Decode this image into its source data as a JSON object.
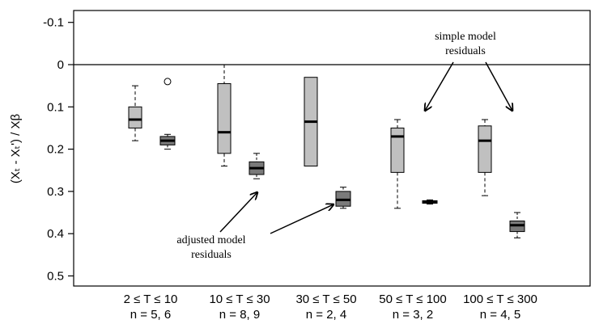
{
  "chart_data": {
    "type": "boxplot",
    "ylabel": "(Xₜ - Xₜ') / Xβ",
    "ylim": [
      -0.15,
      0.53
    ],
    "y_inverted": true,
    "yticks": [
      "-0.1",
      "0",
      "0.1",
      "0.2",
      "0.3",
      "0.4",
      "0.5"
    ],
    "ytick_values": [
      -0.1,
      0,
      0.1,
      0.2,
      0.3,
      0.4,
      0.5
    ],
    "reference_line": 0,
    "grid": false,
    "groups": [
      {
        "label": "2 ≤ T ≤ 10",
        "n_label": "n = 5, 6"
      },
      {
        "label": "10 ≤ T ≤ 30",
        "n_label": "n = 8, 9"
      },
      {
        "label": "30 ≤ T ≤ 50",
        "n_label": "n = 2, 4"
      },
      {
        "label": "50 ≤ T ≤ 100",
        "n_label": "n = 3, 2"
      },
      {
        "label": "100 ≤ T ≤ 300",
        "n_label": "n = 4, 5"
      }
    ],
    "boxes": [
      {
        "group": 0,
        "kind": "simple",
        "whisker_low": 0.05,
        "q1": 0.1,
        "median": 0.13,
        "q3": 0.15,
        "whisker_high": 0.18,
        "outliers": []
      },
      {
        "group": 0,
        "kind": "adjusted",
        "whisker_low": 0.165,
        "q1": 0.17,
        "median": 0.18,
        "q3": 0.19,
        "whisker_high": 0.2,
        "outliers": [
          0.04
        ]
      },
      {
        "group": 1,
        "kind": "simple",
        "whisker_low": 0.0,
        "q1": 0.045,
        "median": 0.16,
        "q3": 0.21,
        "whisker_high": 0.24,
        "outliers": []
      },
      {
        "group": 1,
        "kind": "adjusted",
        "whisker_low": 0.21,
        "q1": 0.23,
        "median": 0.245,
        "q3": 0.26,
        "whisker_high": 0.27,
        "outliers": []
      },
      {
        "group": 2,
        "kind": "simple",
        "whisker_low": 0.03,
        "q1": 0.03,
        "median": 0.135,
        "q3": 0.24,
        "whisker_high": 0.24,
        "outliers": []
      },
      {
        "group": 2,
        "kind": "adjusted",
        "whisker_low": 0.29,
        "q1": 0.3,
        "median": 0.32,
        "q3": 0.335,
        "whisker_high": 0.34,
        "outliers": []
      },
      {
        "group": 3,
        "kind": "simple",
        "whisker_low": 0.13,
        "q1": 0.15,
        "median": 0.17,
        "q3": 0.255,
        "whisker_high": 0.34,
        "outliers": []
      },
      {
        "group": 3,
        "kind": "adjusted",
        "whisker_low": 0.32,
        "q1": 0.322,
        "median": 0.325,
        "q3": 0.328,
        "whisker_high": 0.33,
        "outliers": []
      },
      {
        "group": 4,
        "kind": "simple",
        "whisker_low": 0.13,
        "q1": 0.145,
        "median": 0.18,
        "q3": 0.255,
        "whisker_high": 0.31,
        "outliers": []
      },
      {
        "group": 4,
        "kind": "adjusted",
        "whisker_low": 0.35,
        "q1": 0.37,
        "median": 0.38,
        "q3": 0.395,
        "whisker_high": 0.41,
        "outliers": []
      }
    ],
    "box_colors": {
      "simple": "#c0c0c0",
      "adjusted": "#7a7a7a"
    },
    "annotations": [
      {
        "id": "simple",
        "lines": [
          "simple model",
          "residuals"
        ]
      },
      {
        "id": "adjusted",
        "lines": [
          "adjusted model",
          "residuals"
        ]
      }
    ]
  }
}
